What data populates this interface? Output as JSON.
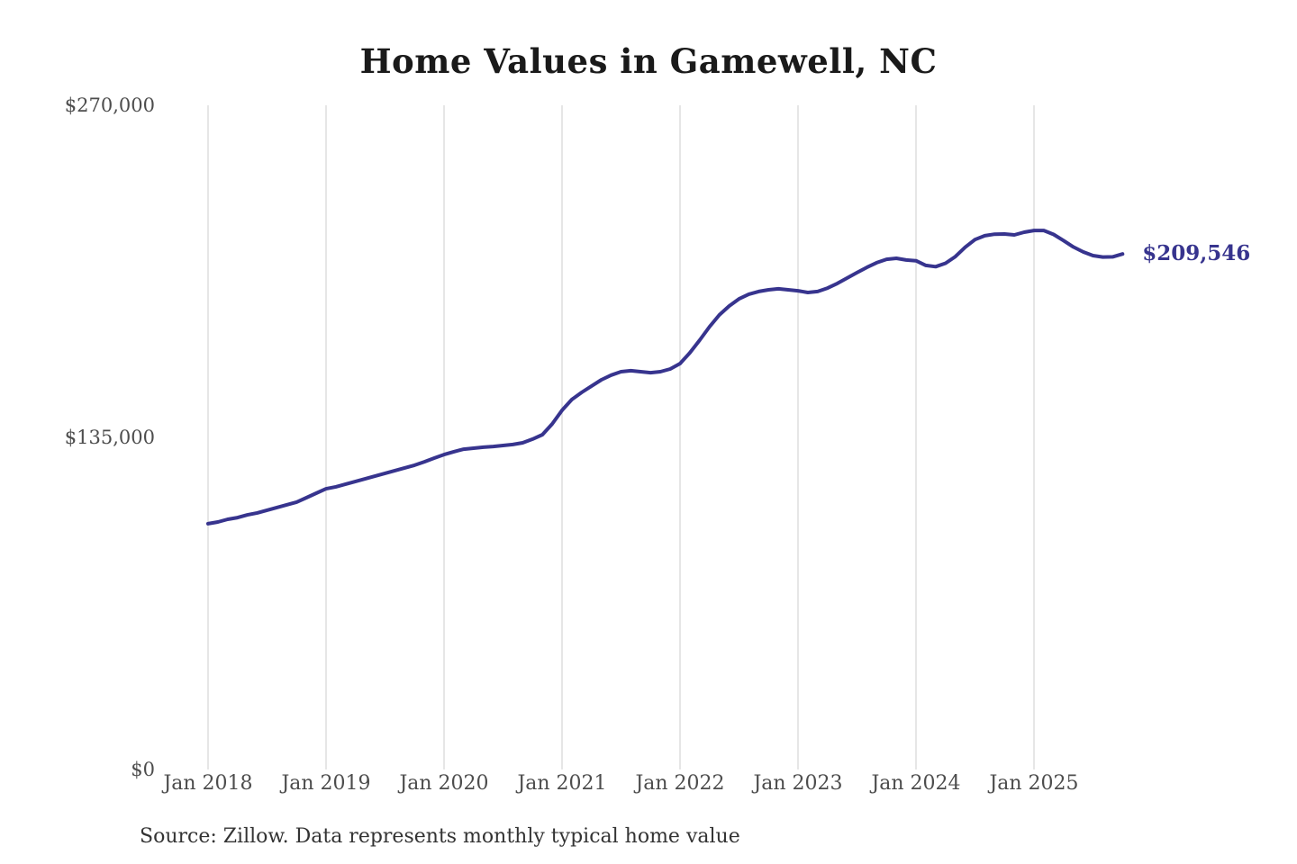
{
  "title": "Home Values in Gamewell, NC",
  "end_label": "$209,546",
  "source_note": "Source: Zillow. Data represents monthly typical home value",
  "colors": {
    "background": "#ffffff",
    "line": "#37348e",
    "grid": "#cccccc",
    "axis_text": "#4d4d4d",
    "title_text": "#1a1a1a",
    "source_text": "#333333",
    "end_label_text": "#37348e"
  },
  "y_axis": {
    "min": 0,
    "max": 270000,
    "ticks": [
      {
        "label": "$270,000",
        "value": 270000
      },
      {
        "label": "$135,000",
        "value": 135000
      },
      {
        "label": "$0",
        "value": 0
      }
    ]
  },
  "x_axis": {
    "ticks": [
      {
        "label": "Jan 2018",
        "month_index": 0
      },
      {
        "label": "Jan 2019",
        "month_index": 12
      },
      {
        "label": "Jan 2020",
        "month_index": 24
      },
      {
        "label": "Jan 2021",
        "month_index": 36
      },
      {
        "label": "Jan 2022",
        "month_index": 48
      },
      {
        "label": "Jan 2023",
        "month_index": 60
      },
      {
        "label": "Jan 2024",
        "month_index": 72
      },
      {
        "label": "Jan 2025",
        "month_index": 84
      }
    ]
  },
  "chart_data": {
    "type": "line",
    "title": "Home Values in Gamewell, NC",
    "series_name": "Monthly typical home value",
    "xlabel": "",
    "ylabel": "",
    "ylim": [
      0,
      270000
    ],
    "grid": "vertical-only",
    "legend": "none",
    "final_value_label": "$209,546",
    "x": [
      "2018-01",
      "2018-02",
      "2018-03",
      "2018-04",
      "2018-05",
      "2018-06",
      "2018-07",
      "2018-08",
      "2018-09",
      "2018-10",
      "2018-11",
      "2018-12",
      "2019-01",
      "2019-02",
      "2019-03",
      "2019-04",
      "2019-05",
      "2019-06",
      "2019-07",
      "2019-08",
      "2019-09",
      "2019-10",
      "2019-11",
      "2019-12",
      "2020-01",
      "2020-02",
      "2020-03",
      "2020-04",
      "2020-05",
      "2020-06",
      "2020-07",
      "2020-08",
      "2020-09",
      "2020-10",
      "2020-11",
      "2020-12",
      "2021-01",
      "2021-02",
      "2021-03",
      "2021-04",
      "2021-05",
      "2021-06",
      "2021-07",
      "2021-08",
      "2021-09",
      "2021-10",
      "2021-11",
      "2021-12",
      "2022-01",
      "2022-02",
      "2022-03",
      "2022-04",
      "2022-05",
      "2022-06",
      "2022-07",
      "2022-08",
      "2022-09",
      "2022-10",
      "2022-11",
      "2022-12",
      "2023-01",
      "2023-02",
      "2023-03",
      "2023-04",
      "2023-05",
      "2023-06",
      "2023-07",
      "2023-08",
      "2023-09",
      "2023-10",
      "2023-11",
      "2023-12",
      "2024-01",
      "2024-02",
      "2024-03",
      "2024-04",
      "2024-05",
      "2024-06",
      "2024-07",
      "2024-08",
      "2024-09",
      "2024-10",
      "2024-11",
      "2024-12",
      "2025-01",
      "2025-02",
      "2025-03",
      "2025-04",
      "2025-05",
      "2025-06",
      "2025-07",
      "2025-08",
      "2025-09",
      "2025-10"
    ],
    "values": [
      99900,
      100600,
      101700,
      102400,
      103500,
      104300,
      105400,
      106500,
      107600,
      108700,
      110500,
      112300,
      114100,
      114900,
      116000,
      117100,
      118200,
      119300,
      120400,
      121500,
      122600,
      123700,
      125100,
      126600,
      128000,
      129200,
      130200,
      130600,
      131000,
      131300,
      131700,
      132100,
      132800,
      134300,
      136100,
      140500,
      146000,
      150400,
      153300,
      155900,
      158400,
      160300,
      161700,
      162100,
      161700,
      161300,
      161700,
      162800,
      165000,
      169400,
      174500,
      180000,
      184800,
      188400,
      191300,
      193200,
      194300,
      195000,
      195400,
      195000,
      194600,
      193900,
      194300,
      195700,
      197600,
      199800,
      202000,
      204100,
      206000,
      207400,
      207800,
      207100,
      206800,
      204900,
      204400,
      205800,
      208500,
      212300,
      215400,
      217000,
      217600,
      217700,
      217300,
      218400,
      219100,
      219100,
      217500,
      215000,
      212400,
      210400,
      208900,
      208300,
      208400,
      209546
    ]
  }
}
